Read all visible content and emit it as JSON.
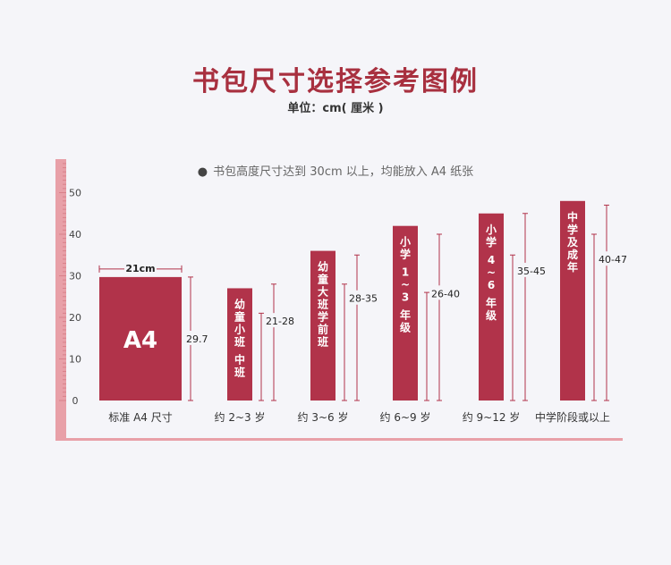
{
  "header": {
    "title": "书包尺寸选择参考图例",
    "unit": "单位：cm( 厘米 )"
  },
  "note": {
    "bullet": "●",
    "text": "书包高度尺寸达到 30cm 以上，均能放入 A4 纸张"
  },
  "colors": {
    "bar": "#b1334a",
    "ruler": "#e8a0a8",
    "ruler_dark": "#d9808a",
    "title": "#a8303f"
  },
  "chart_data": {
    "type": "bar",
    "ylim": [
      0,
      50
    ],
    "yticks": [
      0,
      10,
      20,
      30,
      40,
      50
    ],
    "grid": false,
    "bars": [
      {
        "category": "标准 A4 尺寸",
        "inner_label": "A4",
        "value": 29.7,
        "range": [
          0,
          29.7
        ],
        "range_label": "29.7",
        "width_label": "21cm"
      },
      {
        "category": "约 2~3 岁",
        "inner_label": "幼童小班 中班",
        "value": 27,
        "range": [
          21,
          28
        ],
        "range_label": "21-28"
      },
      {
        "category": "约 3~6 岁",
        "inner_label": "幼童大班学前班",
        "value": 36,
        "range": [
          28,
          35
        ],
        "range_label": "28-35"
      },
      {
        "category": "约 6~9 岁",
        "inner_label": "小学 1~3 年级",
        "value": 42,
        "range": [
          26,
          40
        ],
        "range_label": "26-40"
      },
      {
        "category": "约 9~12 岁",
        "inner_label": "小学 4~6 年级",
        "value": 45,
        "range": [
          35,
          45
        ],
        "range_label": "35-45"
      },
      {
        "category": "中学阶段或以上",
        "inner_label": "中学及成年",
        "value": 48,
        "range": [
          40,
          47
        ],
        "range_label": "40-47"
      }
    ]
  }
}
